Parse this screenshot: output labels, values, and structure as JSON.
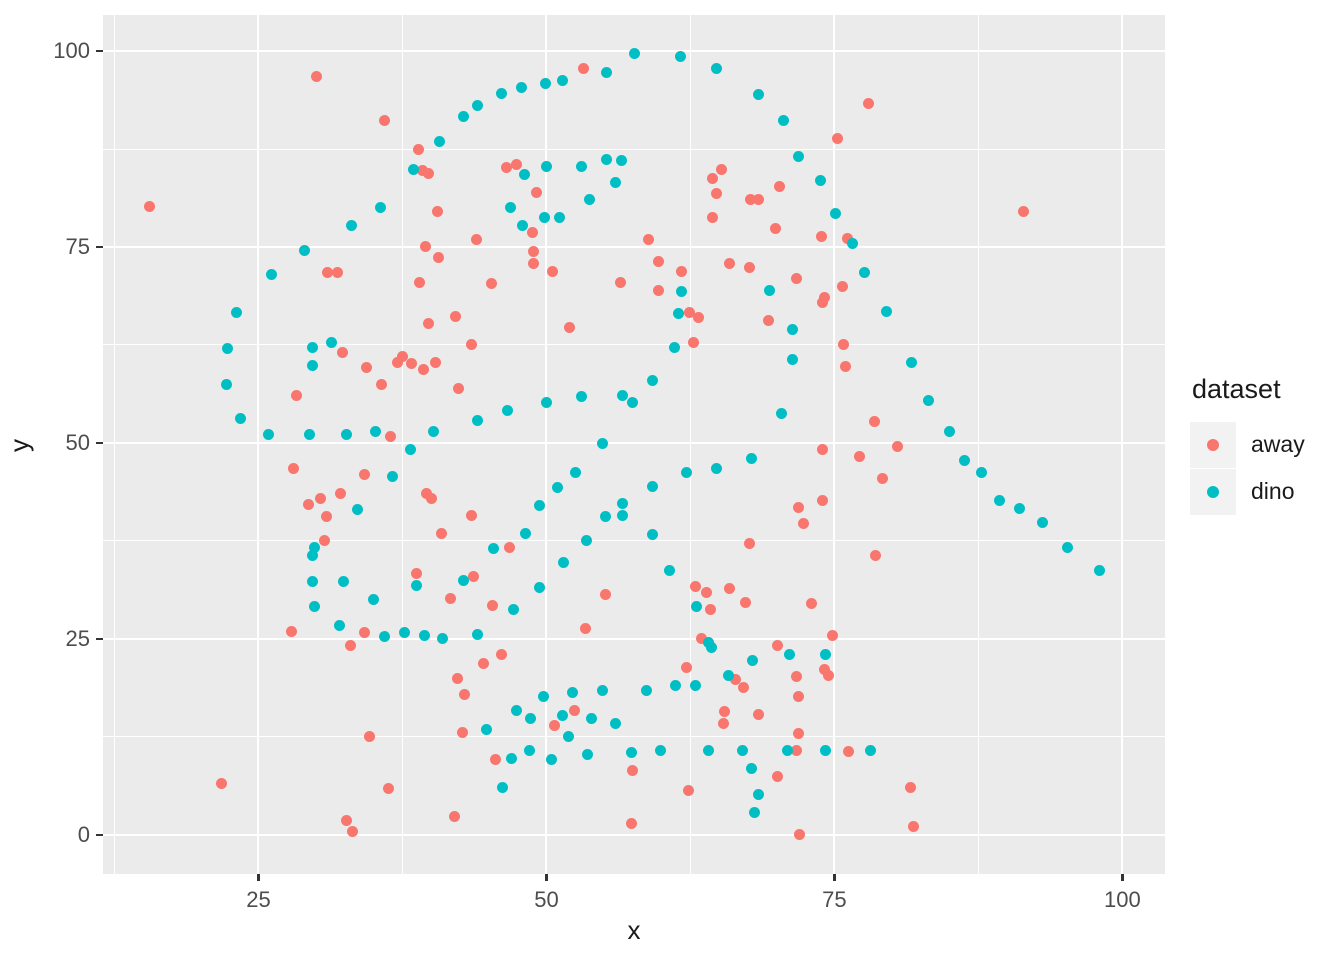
{
  "chart_data": {
    "type": "scatter",
    "title": "",
    "xlabel": "x",
    "ylabel": "y",
    "xlim": [
      11.5,
      103.7
    ],
    "ylim": [
      -5,
      104.6
    ],
    "x_ticks": [
      25,
      50,
      75,
      100
    ],
    "y_ticks": [
      0,
      25,
      50,
      75,
      100
    ],
    "x_minor_ticks": [
      12.5,
      37.5,
      62.5,
      87.5
    ],
    "y_minor_ticks": [
      12.5,
      37.5,
      62.5,
      87.5
    ],
    "grid": true,
    "legend": {
      "title": "dataset",
      "position": "right",
      "entries": [
        {
          "label": "away",
          "color": "#F8766D"
        },
        {
          "label": "dino",
          "color": "#00BFC4"
        }
      ]
    },
    "series": [
      {
        "name": "away",
        "color": "#F8766D",
        "points": [
          [
            30.0,
            96.8
          ],
          [
            15.5,
            80.2
          ],
          [
            31.0,
            71.8
          ],
          [
            31.9,
            71.8
          ],
          [
            53.2,
            97.8
          ],
          [
            35.9,
            91.2
          ],
          [
            38.9,
            87.5
          ],
          [
            39.2,
            84.8
          ],
          [
            39.8,
            84.4
          ],
          [
            46.5,
            85.2
          ],
          [
            47.4,
            85.5
          ],
          [
            49.1,
            82.0
          ],
          [
            40.5,
            79.5
          ],
          [
            48.8,
            76.8
          ],
          [
            43.9,
            76.0
          ],
          [
            39.5,
            75.0
          ],
          [
            40.6,
            73.6
          ],
          [
            48.9,
            74.4
          ],
          [
            48.9,
            72.9
          ],
          [
            50.5,
            71.9
          ],
          [
            39.0,
            70.5
          ],
          [
            45.2,
            70.4
          ],
          [
            56.4,
            70.5
          ],
          [
            78.0,
            93.3
          ],
          [
            75.3,
            88.9
          ],
          [
            65.2,
            84.9
          ],
          [
            64.4,
            83.8
          ],
          [
            64.8,
            81.8
          ],
          [
            70.2,
            82.7
          ],
          [
            67.7,
            81.1
          ],
          [
            68.4,
            81.1
          ],
          [
            64.4,
            78.7
          ],
          [
            69.9,
            77.3
          ],
          [
            58.9,
            75.9
          ],
          [
            73.9,
            76.3
          ],
          [
            76.1,
            76.1
          ],
          [
            59.7,
            73.1
          ],
          [
            61.7,
            71.9
          ],
          [
            65.9,
            72.9
          ],
          [
            67.6,
            72.4
          ],
          [
            71.7,
            71.0
          ],
          [
            75.7,
            69.9
          ],
          [
            59.7,
            69.4
          ],
          [
            74.1,
            68.5
          ],
          [
            91.4,
            79.5
          ],
          [
            32.3,
            61.6
          ],
          [
            34.4,
            59.6
          ],
          [
            28.3,
            56.1
          ],
          [
            28.0,
            46.7
          ],
          [
            34.2,
            46.0
          ],
          [
            29.3,
            42.2
          ],
          [
            30.4,
            42.9
          ],
          [
            32.1,
            43.5
          ],
          [
            30.9,
            40.6
          ],
          [
            30.7,
            37.5
          ],
          [
            39.8,
            65.3
          ],
          [
            42.1,
            66.1
          ],
          [
            52.0,
            64.7
          ],
          [
            43.5,
            62.5
          ],
          [
            37.1,
            60.3
          ],
          [
            37.5,
            61.0
          ],
          [
            38.3,
            60.1
          ],
          [
            39.3,
            59.4
          ],
          [
            40.4,
            60.2
          ],
          [
            35.7,
            57.4
          ],
          [
            42.4,
            56.9
          ],
          [
            36.5,
            50.8
          ],
          [
            39.6,
            43.6
          ],
          [
            40.0,
            42.9
          ],
          [
            43.5,
            40.7
          ],
          [
            40.9,
            38.5
          ],
          [
            46.8,
            36.7
          ],
          [
            38.7,
            33.3
          ],
          [
            43.7,
            32.9
          ],
          [
            74.0,
            67.9
          ],
          [
            62.4,
            66.6
          ],
          [
            63.2,
            66.0
          ],
          [
            69.3,
            65.6
          ],
          [
            62.8,
            62.8
          ],
          [
            75.8,
            62.6
          ],
          [
            76.0,
            59.8
          ],
          [
            78.5,
            52.7
          ],
          [
            80.5,
            49.6
          ],
          [
            74.0,
            49.2
          ],
          [
            77.2,
            48.3
          ],
          [
            79.2,
            45.4
          ],
          [
            71.9,
            41.8
          ],
          [
            74.0,
            42.6
          ],
          [
            72.3,
            39.7
          ],
          [
            67.6,
            37.2
          ],
          [
            78.6,
            35.6
          ],
          [
            62.9,
            31.7
          ],
          [
            27.9,
            26.0
          ],
          [
            34.2,
            25.8
          ],
          [
            33.0,
            24.2
          ],
          [
            21.8,
            6.5
          ],
          [
            32.6,
            1.8
          ],
          [
            33.2,
            0.4
          ],
          [
            41.7,
            30.1
          ],
          [
            45.3,
            29.2
          ],
          [
            55.1,
            30.7
          ],
          [
            53.4,
            26.3
          ],
          [
            46.1,
            23.0
          ],
          [
            44.5,
            21.9
          ],
          [
            42.3,
            20.0
          ],
          [
            42.9,
            17.9
          ],
          [
            52.4,
            15.8
          ],
          [
            50.7,
            13.9
          ],
          [
            42.7,
            13.0
          ],
          [
            34.6,
            12.5
          ],
          [
            45.6,
            9.6
          ],
          [
            36.3,
            5.9
          ],
          [
            42.0,
            2.3
          ],
          [
            57.5,
            8.2
          ],
          [
            57.4,
            1.5
          ],
          [
            63.9,
            30.9
          ],
          [
            65.9,
            31.4
          ],
          [
            67.3,
            29.7
          ],
          [
            64.2,
            28.7
          ],
          [
            73.0,
            29.5
          ],
          [
            63.5,
            25.1
          ],
          [
            74.8,
            25.4
          ],
          [
            70.1,
            24.1
          ],
          [
            62.2,
            21.4
          ],
          [
            74.1,
            21.1
          ],
          [
            74.5,
            20.3
          ],
          [
            66.4,
            19.8
          ],
          [
            71.7,
            20.2
          ],
          [
            67.1,
            18.8
          ],
          [
            71.9,
            17.7
          ],
          [
            65.5,
            15.7
          ],
          [
            65.4,
            14.2
          ],
          [
            68.4,
            15.4
          ],
          [
            71.9,
            12.9
          ],
          [
            71.7,
            10.8
          ],
          [
            76.2,
            10.6
          ],
          [
            70.1,
            7.5
          ],
          [
            62.3,
            5.6
          ],
          [
            72.0,
            0.0
          ],
          [
            81.6,
            6.0
          ],
          [
            81.9,
            1.1
          ]
        ]
      },
      {
        "name": "dino",
        "color": "#00BFC4",
        "points": [
          [
            33.1,
            77.8
          ],
          [
            29.0,
            74.6
          ],
          [
            26.1,
            71.5
          ],
          [
            57.6,
            99.7
          ],
          [
            55.2,
            97.3
          ],
          [
            49.9,
            95.9
          ],
          [
            51.4,
            96.3
          ],
          [
            47.8,
            95.3
          ],
          [
            46.1,
            94.6
          ],
          [
            44.0,
            93.0
          ],
          [
            42.8,
            91.7
          ],
          [
            40.7,
            88.5
          ],
          [
            38.5,
            84.9
          ],
          [
            48.1,
            84.2
          ],
          [
            50.0,
            85.3
          ],
          [
            53.0,
            85.3
          ],
          [
            55.2,
            86.1
          ],
          [
            56.5,
            86.0
          ],
          [
            56.0,
            83.2
          ],
          [
            46.9,
            80.1
          ],
          [
            35.6,
            80.0
          ],
          [
            53.7,
            81.0
          ],
          [
            49.8,
            78.8
          ],
          [
            51.1,
            78.8
          ],
          [
            47.9,
            77.7
          ],
          [
            61.6,
            99.3
          ],
          [
            64.8,
            97.8
          ],
          [
            68.4,
            94.4
          ],
          [
            70.6,
            91.2
          ],
          [
            71.9,
            86.6
          ],
          [
            73.8,
            83.5
          ],
          [
            75.1,
            79.3
          ],
          [
            76.6,
            75.4
          ],
          [
            77.6,
            71.7
          ],
          [
            69.4,
            69.5
          ],
          [
            61.7,
            69.3
          ],
          [
            23.1,
            66.6
          ],
          [
            22.3,
            62.0
          ],
          [
            29.7,
            62.2
          ],
          [
            31.3,
            62.8
          ],
          [
            29.7,
            59.9
          ],
          [
            22.2,
            57.4
          ],
          [
            23.4,
            53.1
          ],
          [
            25.9,
            51.1
          ],
          [
            29.4,
            51.1
          ],
          [
            32.6,
            51.1
          ],
          [
            33.6,
            41.5
          ],
          [
            29.9,
            36.6
          ],
          [
            29.7,
            35.7
          ],
          [
            29.7,
            32.3
          ],
          [
            32.4,
            32.3
          ],
          [
            50.0,
            55.2
          ],
          [
            53.0,
            55.9
          ],
          [
            56.6,
            56.0
          ],
          [
            57.5,
            55.1
          ],
          [
            46.6,
            54.2
          ],
          [
            44.0,
            52.8
          ],
          [
            35.2,
            51.4
          ],
          [
            40.2,
            51.4
          ],
          [
            38.2,
            49.2
          ],
          [
            54.9,
            49.9
          ],
          [
            36.6,
            45.7
          ],
          [
            52.5,
            46.2
          ],
          [
            51.0,
            44.3
          ],
          [
            49.4,
            42.0
          ],
          [
            56.6,
            42.3
          ],
          [
            56.6,
            40.8
          ],
          [
            55.1,
            40.6
          ],
          [
            48.2,
            38.4
          ],
          [
            53.5,
            37.5
          ],
          [
            45.4,
            36.5
          ],
          [
            51.5,
            34.8
          ],
          [
            42.8,
            32.5
          ],
          [
            38.7,
            31.8
          ],
          [
            61.5,
            66.5
          ],
          [
            71.4,
            64.5
          ],
          [
            79.5,
            66.8
          ],
          [
            61.1,
            62.2
          ],
          [
            71.4,
            60.7
          ],
          [
            59.2,
            58.0
          ],
          [
            70.4,
            53.8
          ],
          [
            67.8,
            48.0
          ],
          [
            64.8,
            46.8
          ],
          [
            62.2,
            46.2
          ],
          [
            59.2,
            44.5
          ],
          [
            59.2,
            38.3
          ],
          [
            60.7,
            33.7
          ],
          [
            81.7,
            60.3
          ],
          [
            83.2,
            55.4
          ],
          [
            85.0,
            51.4
          ],
          [
            86.3,
            47.7
          ],
          [
            87.8,
            46.2
          ],
          [
            89.3,
            42.6
          ],
          [
            91.1,
            41.6
          ],
          [
            93.1,
            39.8
          ],
          [
            95.2,
            36.7
          ],
          [
            98.0,
            33.7
          ],
          [
            29.9,
            29.1
          ],
          [
            32.0,
            26.7
          ],
          [
            35.0,
            30.0
          ],
          [
            49.4,
            31.5
          ],
          [
            47.1,
            28.7
          ],
          [
            35.9,
            25.3
          ],
          [
            37.7,
            25.8
          ],
          [
            39.4,
            25.4
          ],
          [
            41.0,
            25.1
          ],
          [
            44.0,
            25.6
          ],
          [
            49.7,
            17.6
          ],
          [
            52.3,
            18.2
          ],
          [
            54.9,
            18.4
          ],
          [
            47.4,
            15.8
          ],
          [
            48.6,
            14.8
          ],
          [
            51.4,
            15.2
          ],
          [
            53.9,
            14.8
          ],
          [
            56.0,
            14.2
          ],
          [
            44.8,
            13.5
          ],
          [
            51.9,
            12.6
          ],
          [
            48.5,
            10.8
          ],
          [
            50.4,
            9.6
          ],
          [
            47.0,
            9.8
          ],
          [
            53.6,
            10.3
          ],
          [
            57.4,
            10.5
          ],
          [
            46.2,
            6.0
          ],
          [
            63.0,
            29.1
          ],
          [
            64.1,
            24.6
          ],
          [
            64.3,
            23.9
          ],
          [
            71.1,
            23.0
          ],
          [
            74.2,
            23.0
          ],
          [
            67.9,
            22.2
          ],
          [
            65.8,
            20.3
          ],
          [
            61.2,
            19.0
          ],
          [
            62.9,
            19.0
          ],
          [
            58.7,
            18.4
          ],
          [
            59.9,
            10.7
          ],
          [
            64.1,
            10.7
          ],
          [
            67.0,
            10.7
          ],
          [
            70.9,
            10.7
          ],
          [
            74.2,
            10.7
          ],
          [
            78.1,
            10.7
          ],
          [
            67.8,
            8.5
          ],
          [
            68.4,
            5.2
          ],
          [
            68.1,
            2.9
          ]
        ]
      }
    ]
  },
  "theme": {
    "panel_bg": "#EBEBEB",
    "grid_color": "#FFFFFF",
    "axis_text_color": "#4D4D4D",
    "tick_mark_color": "#333333",
    "text_color": "#1A1A1A",
    "legend_key_bg": "#F2F2F2",
    "page_bg": "#FFFFFF"
  }
}
